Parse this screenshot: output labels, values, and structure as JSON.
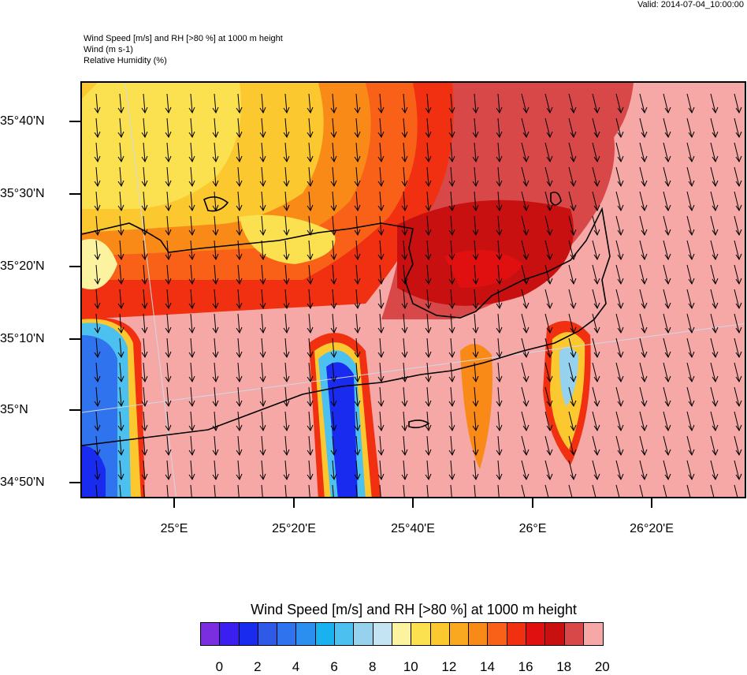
{
  "valid_time": "Valid: 2014-07-04_10:00:00",
  "titles": {
    "line1": "Wind Speed [m/s] and RH [>80 %] at 1000 m height",
    "line2": "Wind   (m s-1)",
    "line3": "Relative Humidity   (%)"
  },
  "axes": {
    "lat_labels": [
      "35°40'N",
      "35°30'N",
      "35°20'N",
      "35°10'N",
      "35°N",
      "34°50'N"
    ],
    "lon_labels": [
      "25°E",
      "25°20'E",
      "25°40'E",
      "26°E",
      "26°20'E"
    ]
  },
  "colorbar": {
    "title": "Wind Speed [m/s] and RH [>80 %] at 1000 m height",
    "colors": [
      "#7b2de0",
      "#3b1ff0",
      "#1a2bf0",
      "#2f5ae8",
      "#2f74ee",
      "#2b8ff0",
      "#18b2f0",
      "#4cc0ee",
      "#96d2ee",
      "#c4e4f3",
      "#fbf3a0",
      "#fbe050",
      "#fbc830",
      "#f9a820",
      "#f98a18",
      "#f96018",
      "#f03010",
      "#e01010",
      "#c81010",
      "#d84848",
      "#f5a8a6"
    ],
    "labels": [
      "0",
      "2",
      "4",
      "6",
      "8",
      "10",
      "12",
      "14",
      "16",
      "18",
      "20"
    ]
  },
  "legend_colors": {
    "land_outline": "#000000",
    "arrow": "#000000",
    "grid_line": "#cfd8e6"
  }
}
